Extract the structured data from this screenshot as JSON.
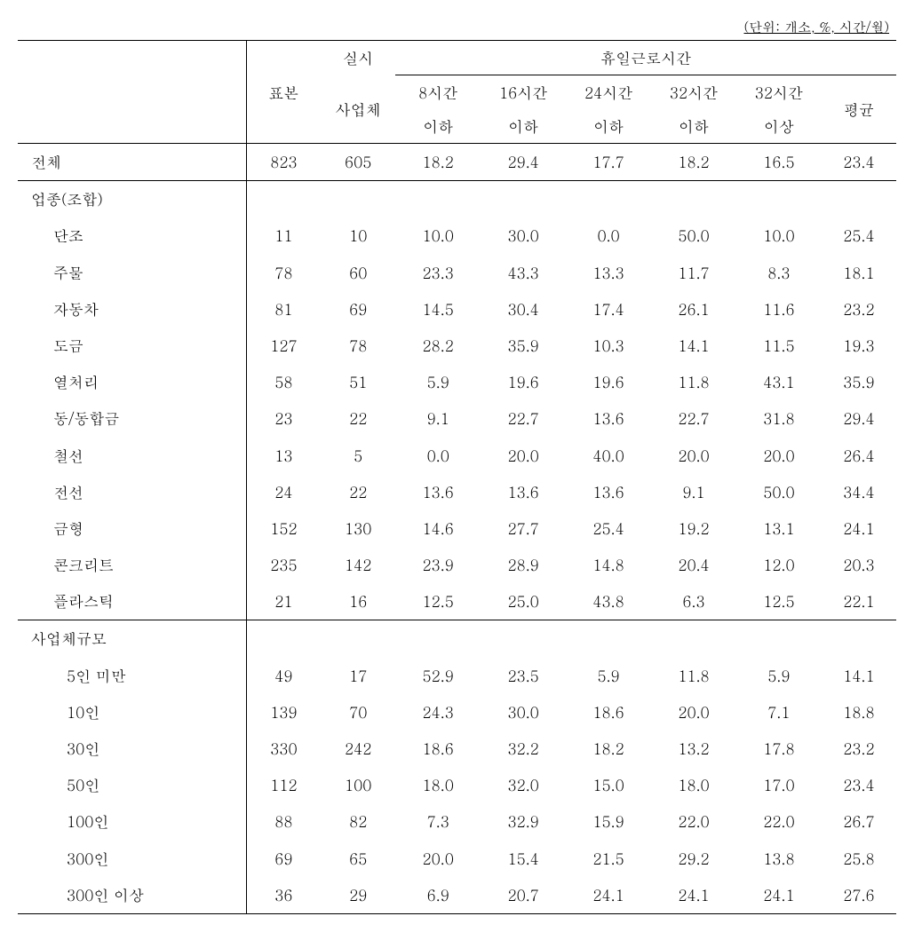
{
  "unit_label": "(단위: 개소, %, 시간/월)",
  "header": {
    "sample": "표본",
    "impl": "실시",
    "company": "사업체",
    "hours_group": "휴일근로시간",
    "h8_1": "8시간",
    "h8_2": "이하",
    "h16_1": "16시간",
    "h16_2": "이하",
    "h24_1": "24시간",
    "h24_2": "이하",
    "h32_1": "32시간",
    "h32_2": "이하",
    "h32p_1": "32시간",
    "h32p_2": "이상",
    "avg": "평균"
  },
  "total": {
    "label": "전체",
    "sample": "823",
    "impl": "605",
    "h8": "18.2",
    "h16": "29.4",
    "h24": "17.7",
    "h32": "18.2",
    "h32p": "16.5",
    "avg": "23.4"
  },
  "section1_label": "업종(조합)",
  "industry": [
    {
      "label": "단조",
      "sample": "11",
      "impl": "10",
      "h8": "10.0",
      "h16": "30.0",
      "h24": "0.0",
      "h32": "50.0",
      "h32p": "10.0",
      "avg": "25.4"
    },
    {
      "label": "주물",
      "sample": "78",
      "impl": "60",
      "h8": "23.3",
      "h16": "43.3",
      "h24": "13.3",
      "h32": "11.7",
      "h32p": "8.3",
      "avg": "18.1"
    },
    {
      "label": "자동차",
      "sample": "81",
      "impl": "69",
      "h8": "14.5",
      "h16": "30.4",
      "h24": "17.4",
      "h32": "26.1",
      "h32p": "11.6",
      "avg": "23.2"
    },
    {
      "label": "도금",
      "sample": "127",
      "impl": "78",
      "h8": "28.2",
      "h16": "35.9",
      "h24": "10.3",
      "h32": "14.1",
      "h32p": "11.5",
      "avg": "19.3"
    },
    {
      "label": "열처리",
      "sample": "58",
      "impl": "51",
      "h8": "5.9",
      "h16": "19.6",
      "h24": "19.6",
      "h32": "11.8",
      "h32p": "43.1",
      "avg": "35.9"
    },
    {
      "label": "동/동합금",
      "sample": "23",
      "impl": "22",
      "h8": "9.1",
      "h16": "22.7",
      "h24": "13.6",
      "h32": "22.7",
      "h32p": "31.8",
      "avg": "29.4"
    },
    {
      "label": "철선",
      "sample": "13",
      "impl": "5",
      "h8": "0.0",
      "h16": "20.0",
      "h24": "40.0",
      "h32": "20.0",
      "h32p": "20.0",
      "avg": "26.4"
    },
    {
      "label": "전선",
      "sample": "24",
      "impl": "22",
      "h8": "13.6",
      "h16": "13.6",
      "h24": "13.6",
      "h32": "9.1",
      "h32p": "50.0",
      "avg": "34.4"
    },
    {
      "label": "금형",
      "sample": "152",
      "impl": "130",
      "h8": "14.6",
      "h16": "27.7",
      "h24": "25.4",
      "h32": "19.2",
      "h32p": "13.1",
      "avg": "24.1"
    },
    {
      "label": "콘크리트",
      "sample": "235",
      "impl": "142",
      "h8": "23.9",
      "h16": "28.9",
      "h24": "14.8",
      "h32": "20.4",
      "h32p": "12.0",
      "avg": "20.3"
    },
    {
      "label": "플라스틱",
      "sample": "21",
      "impl": "16",
      "h8": "12.5",
      "h16": "25.0",
      "h24": "43.8",
      "h32": "6.3",
      "h32p": "12.5",
      "avg": "22.1"
    }
  ],
  "section2_label": "사업체규모",
  "size": [
    {
      "label": "5인 미만",
      "sample": "49",
      "impl": "17",
      "h8": "52.9",
      "h16": "23.5",
      "h24": "5.9",
      "h32": "11.8",
      "h32p": "5.9",
      "avg": "14.1"
    },
    {
      "label": "10인",
      "sample": "139",
      "impl": "70",
      "h8": "24.3",
      "h16": "30.0",
      "h24": "18.6",
      "h32": "20.0",
      "h32p": "7.1",
      "avg": "18.8"
    },
    {
      "label": "30인",
      "sample": "330",
      "impl": "242",
      "h8": "18.6",
      "h16": "32.2",
      "h24": "18.2",
      "h32": "13.2",
      "h32p": "17.8",
      "avg": "23.2"
    },
    {
      "label": "50인",
      "sample": "112",
      "impl": "100",
      "h8": "18.0",
      "h16": "32.0",
      "h24": "15.0",
      "h32": "18.0",
      "h32p": "17.0",
      "avg": "23.4"
    },
    {
      "label": "100인",
      "sample": "88",
      "impl": "82",
      "h8": "7.3",
      "h16": "32.9",
      "h24": "15.9",
      "h32": "22.0",
      "h32p": "22.0",
      "avg": "26.7"
    },
    {
      "label": "300인",
      "sample": "69",
      "impl": "65",
      "h8": "20.0",
      "h16": "15.4",
      "h24": "21.5",
      "h32": "29.2",
      "h32p": "13.8",
      "avg": "25.8"
    },
    {
      "label": "300인 이상",
      "sample": "36",
      "impl": "29",
      "h8": "6.9",
      "h16": "20.7",
      "h24": "24.1",
      "h32": "24.1",
      "h32p": "24.1",
      "avg": "27.6"
    }
  ]
}
